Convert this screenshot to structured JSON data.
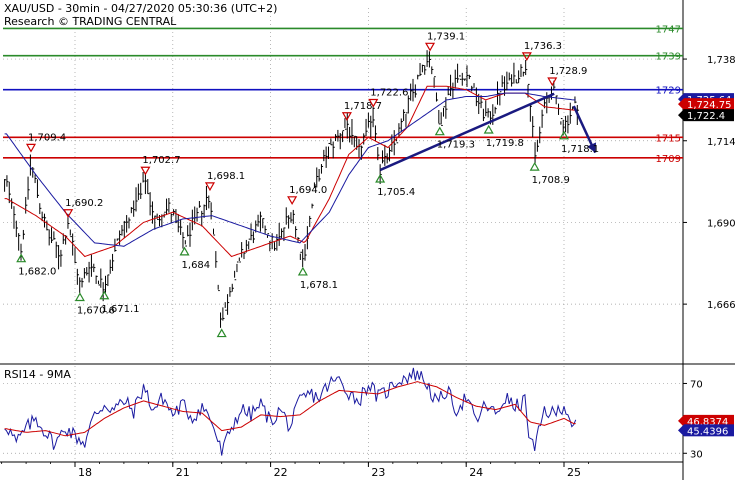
{
  "header": {
    "line1": "XAU/USD - 30min - 04/27/2020 05:30:36 (UTC+2)",
    "line2": "Research © TRADING CENTRAL"
  },
  "rsi_panel": {
    "title": "RSI14 - 9MA"
  },
  "colors": {
    "price": "#000000",
    "ma_red": "#cc0000",
    "ma_blue": "#1a1aa0",
    "support": "#2a8a2a",
    "resistance": "#cc0000",
    "pivot": "#1010c0",
    "projection": "#1a1a80",
    "grid": "#9a9a9a"
  },
  "chart_data": [
    {
      "type": "line",
      "name": "price",
      "ylim": [
        1649,
        1753
      ],
      "y_ticks": [
        1666,
        1690,
        1714,
        1738
      ],
      "x_tick_labels": [
        "18",
        "21",
        "22",
        "23",
        "24",
        "25"
      ],
      "x_tick_days": [
        0,
        1,
        2,
        3,
        4,
        5
      ],
      "levels": [
        {
          "label": "1747",
          "value": 1747,
          "color": "#2a8a2a"
        },
        {
          "label": "1739",
          "value": 1739,
          "color": "#2a8a2a"
        },
        {
          "label": "1729",
          "value": 1729,
          "color": "#1010c0"
        },
        {
          "label": "1715",
          "value": 1715,
          "color": "#cc0000"
        },
        {
          "label": "1709",
          "value": 1709,
          "color": "#cc0000"
        }
      ],
      "current_price_tags": [
        {
          "label": "1,725.64",
          "value": 1725.64,
          "bg": "#1a1aa0"
        },
        {
          "label": "1,724.75",
          "value": 1724.75,
          "bg": "#cc0000"
        },
        {
          "label": "1,722.4",
          "value": 1722.4,
          "bg": "#000000"
        }
      ],
      "pivots": [
        {
          "label": "1,709.4",
          "day": -0.45,
          "value": 1709.4,
          "kind": "high"
        },
        {
          "label": "1,682.0",
          "day": -0.55,
          "value": 1682.0,
          "kind": "low"
        },
        {
          "label": "1,690.2",
          "day": -0.07,
          "value": 1690.2,
          "kind": "high"
        },
        {
          "label": "1,670.6",
          "day": 0.05,
          "value": 1670.6,
          "kind": "low"
        },
        {
          "label": "1,671.1",
          "day": 0.3,
          "value": 1671.1,
          "kind": "low"
        },
        {
          "label": "1,702.7",
          "day": 0.72,
          "value": 1702.7,
          "kind": "high"
        },
        {
          "label": "1,684",
          "day": 1.12,
          "value": 1684.0,
          "kind": "low"
        },
        {
          "label": "1,698.1",
          "day": 1.38,
          "value": 1698.1,
          "kind": "high"
        },
        {
          "label": "1,660.0",
          "day": 1.5,
          "value": 1660.0,
          "kind": "low",
          "hide_label": true
        },
        {
          "label": "1,694.0",
          "day": 2.22,
          "value": 1694.0,
          "kind": "high"
        },
        {
          "label": "1,678.1",
          "day": 2.33,
          "value": 1678.1,
          "kind": "low"
        },
        {
          "label": "1,718.7",
          "day": 2.78,
          "value": 1718.7,
          "kind": "high"
        },
        {
          "label": "1,722.6",
          "day": 3.05,
          "value": 1722.6,
          "kind": "high"
        },
        {
          "label": "1,705.4",
          "day": 3.12,
          "value": 1705.4,
          "kind": "low"
        },
        {
          "label": "1,739.1",
          "day": 3.63,
          "value": 1739.1,
          "kind": "high"
        },
        {
          "label": "1,719.3",
          "day": 3.73,
          "value": 1719.3,
          "kind": "low"
        },
        {
          "label": "1,719.8",
          "day": 4.23,
          "value": 1719.8,
          "kind": "low"
        },
        {
          "label": "1,736.3",
          "day": 4.62,
          "value": 1736.3,
          "kind": "high"
        },
        {
          "label": "1,708.9",
          "day": 4.7,
          "value": 1708.9,
          "kind": "low"
        },
        {
          "label": "1,728.9",
          "day": 4.88,
          "value": 1728.9,
          "kind": "high"
        },
        {
          "label": "1,718.1",
          "day": 5.0,
          "value": 1718.1,
          "kind": "low"
        }
      ],
      "trendlines": [
        {
          "x": [
            3.12,
            4.9
          ],
          "y": [
            1705.4,
            1727.8
          ],
          "color": "#1a1a80"
        }
      ],
      "projection": {
        "x": [
          5.1,
          5.32
        ],
        "y": [
          1724.2,
          1710.5
        ],
        "color": "#1a1a80"
      },
      "price_waypoints": {
        "x": [
          -0.7,
          -0.6,
          -0.55,
          -0.45,
          -0.3,
          -0.15,
          -0.07,
          0.05,
          0.15,
          0.3,
          0.45,
          0.6,
          0.72,
          0.82,
          0.95,
          1.12,
          1.25,
          1.38,
          1.5,
          1.6,
          1.75,
          1.9,
          2.05,
          2.22,
          2.33,
          2.45,
          2.6,
          2.78,
          2.9,
          3.05,
          3.12,
          3.25,
          3.4,
          3.55,
          3.63,
          3.73,
          3.85,
          4.0,
          4.1,
          4.23,
          4.35,
          4.5,
          4.62,
          4.7,
          4.8,
          4.88,
          5.0,
          5.1
        ],
        "y": [
          1701,
          1690,
          1682,
          1708,
          1688,
          1680,
          1690,
          1671,
          1678,
          1671,
          1686,
          1694,
          1702,
          1690,
          1695,
          1684,
          1692,
          1698,
          1660,
          1672,
          1683,
          1690,
          1683,
          1694,
          1678,
          1700,
          1712,
          1718.5,
          1710,
          1722,
          1706,
          1712,
          1724,
          1736,
          1739,
          1719,
          1731,
          1734,
          1727,
          1720,
          1729,
          1733,
          1736,
          1709,
          1724,
          1729,
          1718,
          1724
        ]
      },
      "ma_red_waypoints": {
        "x": [
          -0.7,
          -0.4,
          -0.1,
          0.1,
          0.4,
          0.7,
          1.0,
          1.3,
          1.6,
          1.9,
          2.2,
          2.35,
          2.6,
          2.8,
          3.0,
          3.2,
          3.4,
          3.6,
          3.8,
          4.0,
          4.2,
          4.4,
          4.6,
          4.8,
          5.1
        ],
        "y": [
          1697,
          1692,
          1686,
          1680,
          1683,
          1690,
          1693,
          1689,
          1680,
          1683,
          1686,
          1684,
          1697,
          1710,
          1715,
          1712,
          1718,
          1730,
          1730,
          1729,
          1726,
          1728,
          1728,
          1724,
          1723
        ]
      },
      "ma_blue_waypoints": {
        "x": [
          -0.7,
          -0.4,
          -0.1,
          0.2,
          0.5,
          0.8,
          1.1,
          1.4,
          1.7,
          2.0,
          2.3,
          2.6,
          2.8,
          3.0,
          3.2,
          3.4,
          3.6,
          3.8,
          4.0,
          4.2,
          4.4,
          4.6,
          4.8,
          5.1
        ],
        "y": [
          1716,
          1704,
          1693,
          1684,
          1683,
          1688,
          1691,
          1692,
          1689,
          1686,
          1684,
          1693,
          1704,
          1712,
          1714,
          1718,
          1722,
          1726,
          1727,
          1727,
          1728,
          1728,
          1727,
          1726
        ]
      }
    },
    {
      "type": "line",
      "name": "RSI14",
      "ylim": [
        25,
        80
      ],
      "y_ticks": [
        30,
        70
      ],
      "current_tags": [
        {
          "label": "46.8374",
          "value": 46.84,
          "bg": "#cc0000"
        },
        {
          "label": "45.4396",
          "value": 45.44,
          "bg": "#1a1aa0"
        }
      ],
      "rsi_waypoints": {
        "x": [
          -0.7,
          -0.6,
          -0.5,
          -0.4,
          -0.3,
          -0.2,
          -0.1,
          0.0,
          0.1,
          0.2,
          0.3,
          0.4,
          0.5,
          0.6,
          0.7,
          0.8,
          0.9,
          1.0,
          1.1,
          1.2,
          1.3,
          1.4,
          1.5,
          1.6,
          1.7,
          1.8,
          1.9,
          2.0,
          2.1,
          2.2,
          2.3,
          2.4,
          2.5,
          2.6,
          2.7,
          2.8,
          2.9,
          3.0,
          3.1,
          3.2,
          3.3,
          3.4,
          3.5,
          3.6,
          3.7,
          3.8,
          3.9,
          4.0,
          4.1,
          4.2,
          4.3,
          4.4,
          4.5,
          4.6,
          4.65,
          4.7,
          4.8,
          4.9,
          5.0,
          5.1
        ],
        "y": [
          46,
          36,
          44,
          50,
          42,
          35,
          45,
          40,
          36,
          52,
          58,
          55,
          60,
          54,
          68,
          55,
          62,
          52,
          58,
          50,
          57,
          48,
          30,
          45,
          55,
          52,
          58,
          48,
          55,
          45,
          60,
          64,
          62,
          70,
          72,
          65,
          60,
          70,
          62,
          66,
          72,
          74,
          76,
          70,
          58,
          66,
          55,
          62,
          48,
          58,
          52,
          62,
          56,
          60,
          38,
          32,
          55,
          52,
          58,
          45
        ]
      },
      "rsi_ma_waypoints": {
        "x": [
          -0.7,
          -0.5,
          -0.3,
          -0.1,
          0.1,
          0.3,
          0.5,
          0.7,
          0.9,
          1.1,
          1.3,
          1.5,
          1.7,
          1.9,
          2.1,
          2.3,
          2.5,
          2.7,
          2.9,
          3.1,
          3.3,
          3.5,
          3.7,
          3.9,
          4.1,
          4.3,
          4.5,
          4.65,
          4.8,
          5.0,
          5.1
        ],
        "y": [
          44,
          42,
          43,
          40,
          42,
          50,
          56,
          60,
          57,
          54,
          53,
          43,
          45,
          52,
          51,
          52,
          60,
          66,
          65,
          64,
          68,
          71,
          68,
          62,
          57,
          55,
          58,
          48,
          46,
          50,
          47
        ]
      }
    }
  ]
}
